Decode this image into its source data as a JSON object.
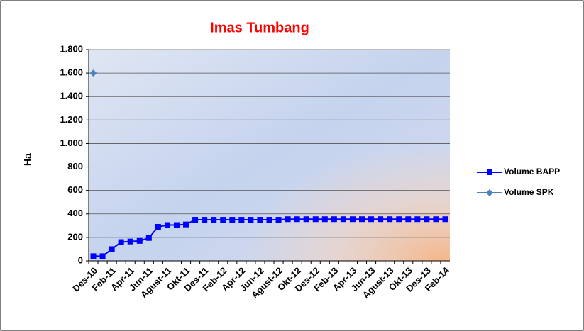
{
  "chart_data": {
    "type": "line",
    "title": "Imas Tumbang",
    "y_label": "Ha",
    "categories": [
      "Des-10",
      null,
      "Feb-11",
      null,
      "Apr-11",
      null,
      "Jun-11",
      null,
      "Agust-11",
      null,
      "Okt-11",
      null,
      "Des-11",
      null,
      "Feb-12",
      null,
      "Apr-12",
      null,
      "Jun-12",
      null,
      "Agust-12",
      null,
      "Okt-12",
      null,
      "Des-12",
      null,
      "Feb-13",
      null,
      "Apr-13",
      null,
      "Jun-13",
      null,
      "Agust-13",
      null,
      "Okt-13",
      null,
      "Des-13",
      null,
      "Feb-14"
    ],
    "series": [
      {
        "name": "Volume BAPP",
        "color": "#0000ff",
        "marker": "square",
        "values": [
          40,
          40,
          100,
          160,
          165,
          170,
          195,
          290,
          305,
          305,
          310,
          350,
          350,
          350,
          350,
          350,
          350,
          350,
          350,
          350,
          350,
          355,
          355,
          355,
          355,
          355,
          355,
          355,
          355,
          355,
          355,
          355,
          355,
          355,
          355,
          355,
          355,
          355,
          355
        ]
      },
      {
        "name": "Volume SPK",
        "color": "#4f81bd",
        "marker": "diamond",
        "values": [
          1600,
          null,
          null,
          null,
          null,
          null,
          null,
          null,
          null,
          null,
          null,
          null,
          null,
          null,
          null,
          null,
          null,
          null,
          null,
          null,
          null,
          null,
          null,
          null,
          null,
          null,
          null,
          null,
          null,
          null,
          null,
          null,
          null,
          null,
          null,
          null,
          null,
          null,
          null
        ]
      }
    ],
    "ylim": [
      0,
      1800
    ],
    "yticks": [
      0,
      200,
      400,
      600,
      800,
      {
        "value": 1000,
        "label": "1.000"
      },
      {
        "value": 1200,
        "label": "1.200"
      },
      {
        "value": 1400,
        "label": "1.400"
      },
      {
        "value": 1600,
        "label": "1.600"
      },
      {
        "value": 1800,
        "label": "1.800"
      }
    ],
    "grid": true,
    "legend": "right"
  }
}
